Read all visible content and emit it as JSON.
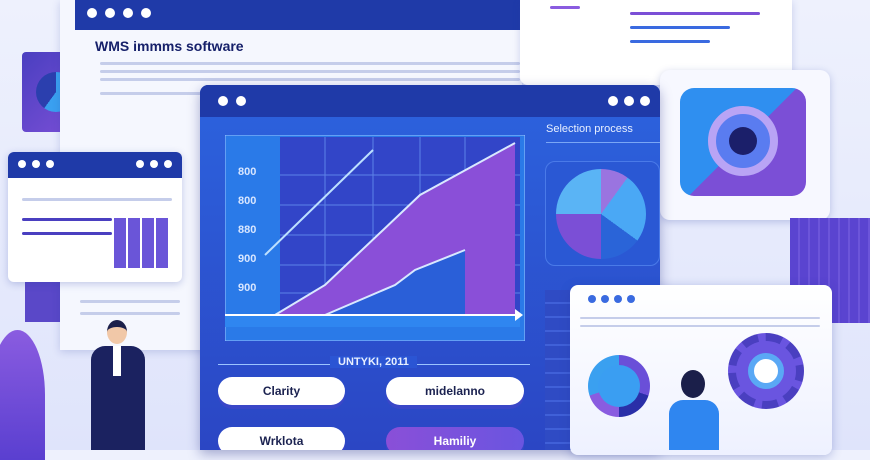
{
  "document": {
    "title": "WMS immms software"
  },
  "main_window": {
    "chart_y_ticks": [
      "800",
      "800",
      "880",
      "900",
      "900"
    ],
    "caption": "UNTYKI, 2011",
    "buttons": [
      {
        "label": "Clarity"
      },
      {
        "label": "midelanno"
      },
      {
        "label": "Wrklota"
      },
      {
        "label": "Hamiliy"
      }
    ]
  },
  "side_panel": {
    "title": "Selection process"
  },
  "colors": {
    "window_header": "#1f3aa8",
    "accent_purple": "#7b4fd6",
    "accent_blue": "#2e6ee8"
  }
}
